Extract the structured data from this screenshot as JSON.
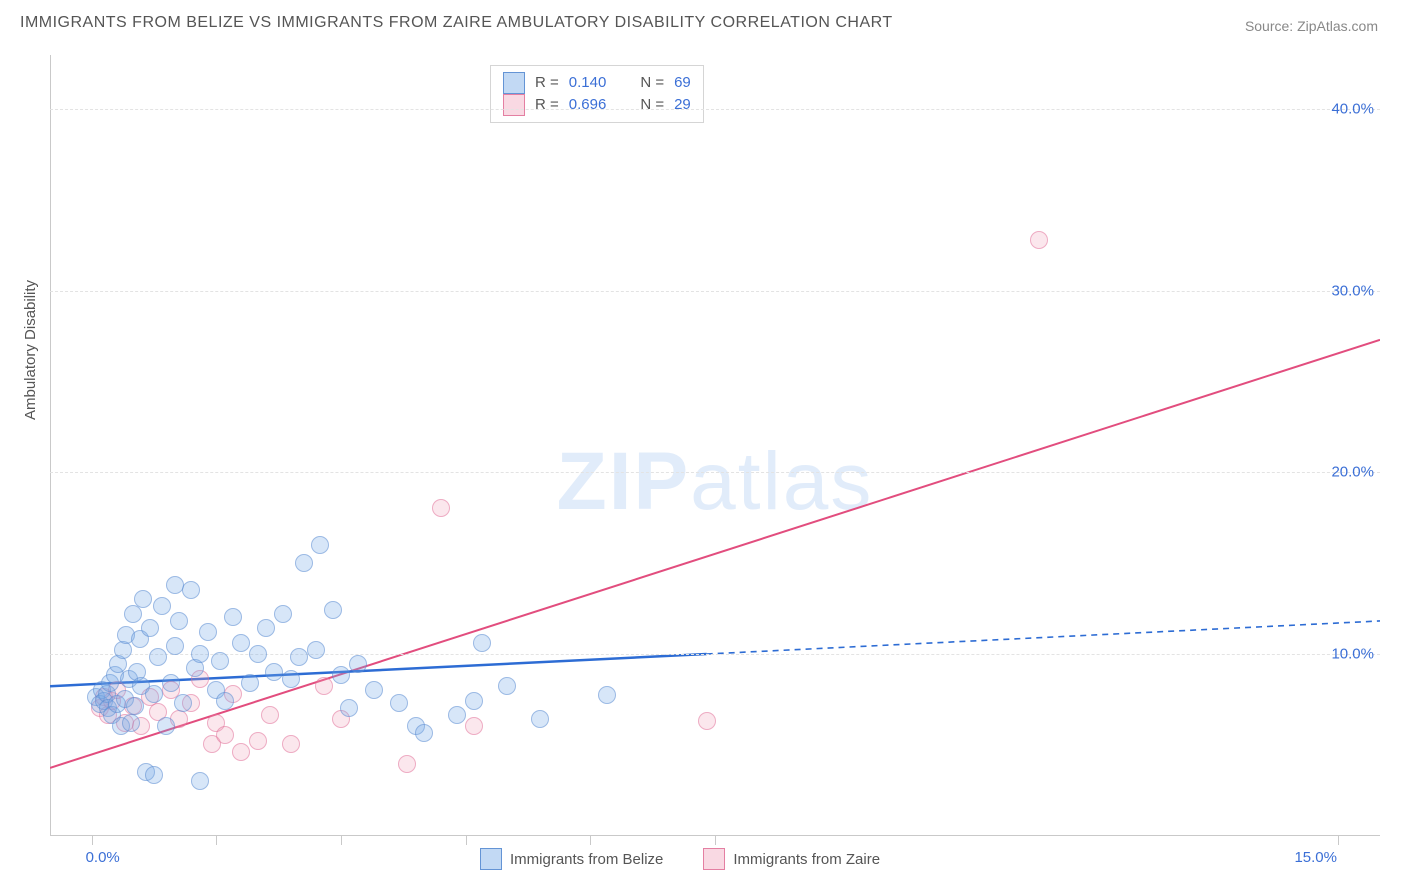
{
  "title": "IMMIGRANTS FROM BELIZE VS IMMIGRANTS FROM ZAIRE AMBULATORY DISABILITY CORRELATION CHART",
  "source": "Source: ZipAtlas.com",
  "ylabel": "Ambulatory Disability",
  "watermark_bold": "ZIP",
  "watermark_light": "atlas",
  "chart": {
    "type": "scatter",
    "background_color": "#ffffff",
    "grid_color": "#e3e3e3",
    "axis_color": "#c9c9c9",
    "label_color": "#3b6fd6",
    "text_color": "#555555",
    "xlim": [
      -0.5,
      15.5
    ],
    "ylim": [
      0,
      43
    ],
    "yticks": [
      10,
      20,
      30,
      40
    ],
    "ytick_labels": [
      "10.0%",
      "20.0%",
      "30.0%",
      "40.0%"
    ],
    "xtick_positions": [
      0,
      1.5,
      3,
      4.5,
      6,
      7.5,
      15
    ],
    "xtick_labels": {
      "0": "0.0%",
      "15": "15.0%"
    },
    "xtick_minor": [
      1.5,
      3,
      4.5,
      6,
      7.5
    ],
    "marker_size": 16,
    "series_blue": {
      "name": "Immigrants from Belize",
      "fill": "rgba(120,170,230,0.45)",
      "stroke": "rgba(90,140,210,0.9)",
      "trend_color": "#2d6cd4",
      "trend_width": 2.5,
      "trend_solid_to_x": 7.4,
      "trend": {
        "x0": -0.5,
        "y0": 8.2,
        "x1": 15.5,
        "y1": 11.8
      },
      "R": "0.140",
      "N": "69",
      "points": [
        [
          0.05,
          7.6
        ],
        [
          0.1,
          7.2
        ],
        [
          0.12,
          8.0
        ],
        [
          0.15,
          7.4
        ],
        [
          0.18,
          7.8
        ],
        [
          0.2,
          7.0
        ],
        [
          0.22,
          8.4
        ],
        [
          0.25,
          6.6
        ],
        [
          0.28,
          8.8
        ],
        [
          0.3,
          7.2
        ],
        [
          0.32,
          9.4
        ],
        [
          0.35,
          6.0
        ],
        [
          0.38,
          10.2
        ],
        [
          0.4,
          7.5
        ],
        [
          0.42,
          11.0
        ],
        [
          0.45,
          8.6
        ],
        [
          0.48,
          6.2
        ],
        [
          0.5,
          12.2
        ],
        [
          0.52,
          7.1
        ],
        [
          0.55,
          9.0
        ],
        [
          0.58,
          10.8
        ],
        [
          0.6,
          8.2
        ],
        [
          0.62,
          13.0
        ],
        [
          0.65,
          3.5
        ],
        [
          0.7,
          11.4
        ],
        [
          0.75,
          7.8
        ],
        [
          0.8,
          9.8
        ],
        [
          0.85,
          12.6
        ],
        [
          0.9,
          6.0
        ],
        [
          0.95,
          8.4
        ],
        [
          1.0,
          10.4
        ],
        [
          1.05,
          11.8
        ],
        [
          1.1,
          7.3
        ],
        [
          1.2,
          13.5
        ],
        [
          1.25,
          9.2
        ],
        [
          1.3,
          10.0
        ],
        [
          1.4,
          11.2
        ],
        [
          1.5,
          8.0
        ],
        [
          1.55,
          9.6
        ],
        [
          1.6,
          7.4
        ],
        [
          1.7,
          12.0
        ],
        [
          1.8,
          10.6
        ],
        [
          1.9,
          8.4
        ],
        [
          2.0,
          10.0
        ],
        [
          2.1,
          11.4
        ],
        [
          2.2,
          9.0
        ],
        [
          2.3,
          12.2
        ],
        [
          2.4,
          8.6
        ],
        [
          2.5,
          9.8
        ],
        [
          2.55,
          15.0
        ],
        [
          2.7,
          10.2
        ],
        [
          2.75,
          16.0
        ],
        [
          2.9,
          12.4
        ],
        [
          3.0,
          8.8
        ],
        [
          3.1,
          7.0
        ],
        [
          3.2,
          9.4
        ],
        [
          3.4,
          8.0
        ],
        [
          3.7,
          7.3
        ],
        [
          3.9,
          6.0
        ],
        [
          4.6,
          7.4
        ],
        [
          4.7,
          10.6
        ],
        [
          4.0,
          5.6
        ],
        [
          4.4,
          6.6
        ],
        [
          5.0,
          8.2
        ],
        [
          5.4,
          6.4
        ],
        [
          6.2,
          7.7
        ],
        [
          0.75,
          3.3
        ],
        [
          1.3,
          3.0
        ],
        [
          1.0,
          13.8
        ]
      ]
    },
    "series_pink": {
      "name": "Immigrants from Zaire",
      "fill": "rgba(240,160,185,0.4)",
      "stroke": "rgba(225,110,150,0.85)",
      "trend_color": "#e24d7e",
      "trend_width": 2,
      "trend": {
        "x0": -0.5,
        "y0": 3.7,
        "x1": 15.5,
        "y1": 27.3
      },
      "R": "0.696",
      "N": "29",
      "points": [
        [
          0.1,
          7.0
        ],
        [
          0.15,
          7.6
        ],
        [
          0.2,
          6.6
        ],
        [
          0.25,
          7.4
        ],
        [
          0.3,
          8.0
        ],
        [
          0.4,
          6.2
        ],
        [
          0.5,
          7.1
        ],
        [
          0.6,
          6.0
        ],
        [
          0.7,
          7.6
        ],
        [
          0.8,
          6.8
        ],
        [
          0.95,
          8.0
        ],
        [
          1.05,
          6.4
        ],
        [
          1.2,
          7.3
        ],
        [
          1.3,
          8.6
        ],
        [
          1.45,
          5.0
        ],
        [
          1.5,
          6.2
        ],
        [
          1.6,
          5.5
        ],
        [
          1.7,
          7.8
        ],
        [
          1.8,
          4.6
        ],
        [
          2.0,
          5.2
        ],
        [
          2.15,
          6.6
        ],
        [
          2.4,
          5.0
        ],
        [
          2.8,
          8.2
        ],
        [
          3.0,
          6.4
        ],
        [
          3.8,
          3.9
        ],
        [
          4.2,
          18.0
        ],
        [
          4.6,
          6.0
        ],
        [
          7.4,
          6.3
        ],
        [
          11.4,
          32.8
        ]
      ]
    }
  },
  "legend_top": {
    "rows": [
      {
        "swatch": "blue",
        "r_label": "R =",
        "r_val": "0.140",
        "n_label": "N =",
        "n_val": "69"
      },
      {
        "swatch": "pink",
        "r_label": "R =",
        "r_val": "0.696",
        "n_label": "N =",
        "n_val": "29"
      }
    ]
  },
  "legend_bottom": [
    {
      "swatch": "blue",
      "label": "Immigrants from Belize"
    },
    {
      "swatch": "pink",
      "label": "Immigrants from Zaire"
    }
  ]
}
